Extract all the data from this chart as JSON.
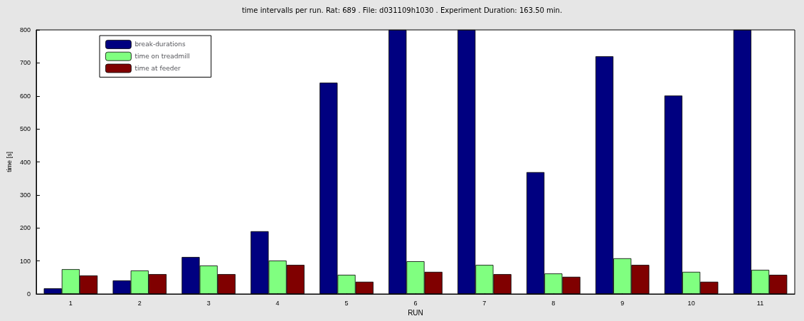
{
  "chart_data": {
    "type": "bar",
    "title": "time intervalls per run. Rat: 689 . File: d031109h1030 . Experiment Duration: 163.50 min.",
    "xlabel": "RUN",
    "ylabel": "time [s]",
    "categories": [
      "1",
      "2",
      "3",
      "4",
      "5",
      "6",
      "7",
      "8",
      "9",
      "10",
      "11"
    ],
    "series": [
      {
        "name": "break-durations",
        "color": "#000080",
        "values": [
          17,
          41,
          112,
          190,
          640,
          800,
          800,
          369,
          720,
          601,
          800
        ]
      },
      {
        "name": "time on treadmill",
        "color": "#80ff80",
        "values": [
          75,
          71,
          86,
          101,
          58,
          99,
          88,
          62,
          108,
          67,
          73
        ]
      },
      {
        "name": "time at feeder",
        "color": "#800000",
        "values": [
          56,
          60,
          60,
          88,
          37,
          67,
          60,
          52,
          88,
          37,
          58
        ]
      }
    ],
    "ylim": [
      0,
      800
    ],
    "yticks": [
      0,
      100,
      200,
      300,
      400,
      500,
      600,
      700,
      800
    ],
    "grid": false,
    "legend": "top left"
  }
}
